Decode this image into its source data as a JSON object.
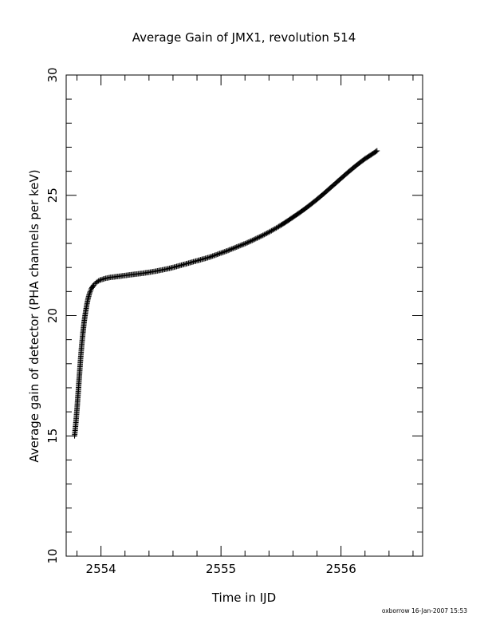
{
  "chart_data": {
    "type": "scatter",
    "title": "Average Gain of JMX1, revolution 514",
    "xlabel": "Time in IJD",
    "ylabel": "Average gain of detector (PHA channels per keV)",
    "xlim": [
      2553.71,
      2556.68
    ],
    "ylim": [
      10,
      30
    ],
    "xticks": [
      "2554",
      "2555",
      "2556"
    ],
    "yticks": [
      "10",
      "15",
      "20",
      "25",
      "30"
    ],
    "marker": "plus",
    "grid": false,
    "legend": "none",
    "series": [
      {
        "x": [
          2553.78,
          2553.79,
          2553.8,
          2553.81,
          2553.82,
          2553.83,
          2553.84,
          2553.85,
          2553.86,
          2553.87,
          2553.88,
          2553.89,
          2553.9,
          2553.91,
          2553.92,
          2553.93,
          2553.94,
          2553.95,
          2553.96,
          2553.97,
          2553.98,
          2553.99,
          2554.0,
          2554.02,
          2554.04,
          2554.06,
          2554.08,
          2554.1,
          2554.13,
          2554.16,
          2554.19,
          2554.22,
          2554.25,
          2554.3,
          2554.35,
          2554.4,
          2554.45,
          2554.5,
          2554.55,
          2554.6,
          2554.65,
          2554.7,
          2554.75,
          2554.8,
          2554.85,
          2554.9,
          2554.95,
          2555.0,
          2555.05,
          2555.1,
          2555.15,
          2555.2,
          2555.25,
          2555.3,
          2555.35,
          2555.4,
          2555.45,
          2555.5,
          2555.55,
          2555.6,
          2555.65,
          2555.7,
          2555.75,
          2555.8,
          2555.85,
          2555.9,
          2555.95,
          2556.0,
          2556.05,
          2556.1,
          2556.15,
          2556.2,
          2556.25,
          2556.3
        ],
        "y": [
          15.0,
          15.5,
          16.1,
          16.8,
          17.5,
          18.2,
          18.8,
          19.3,
          19.75,
          20.1,
          20.4,
          20.65,
          20.85,
          21.0,
          21.12,
          21.2,
          21.27,
          21.33,
          21.37,
          21.41,
          21.44,
          21.47,
          21.49,
          21.52,
          21.55,
          21.57,
          21.59,
          21.6,
          21.62,
          21.64,
          21.66,
          21.68,
          21.7,
          21.73,
          21.76,
          21.8,
          21.84,
          21.89,
          21.94,
          22.0,
          22.07,
          22.14,
          22.21,
          22.28,
          22.35,
          22.42,
          22.51,
          22.6,
          22.69,
          22.79,
          22.89,
          22.99,
          23.1,
          23.22,
          23.34,
          23.47,
          23.61,
          23.76,
          23.92,
          24.09,
          24.26,
          24.44,
          24.63,
          24.83,
          25.04,
          25.26,
          25.48,
          25.7,
          25.92,
          26.13,
          26.33,
          26.52,
          26.68,
          26.85
        ]
      }
    ]
  },
  "footer": {
    "credit": "oxborrow 16-Jan-2007 15:53"
  }
}
